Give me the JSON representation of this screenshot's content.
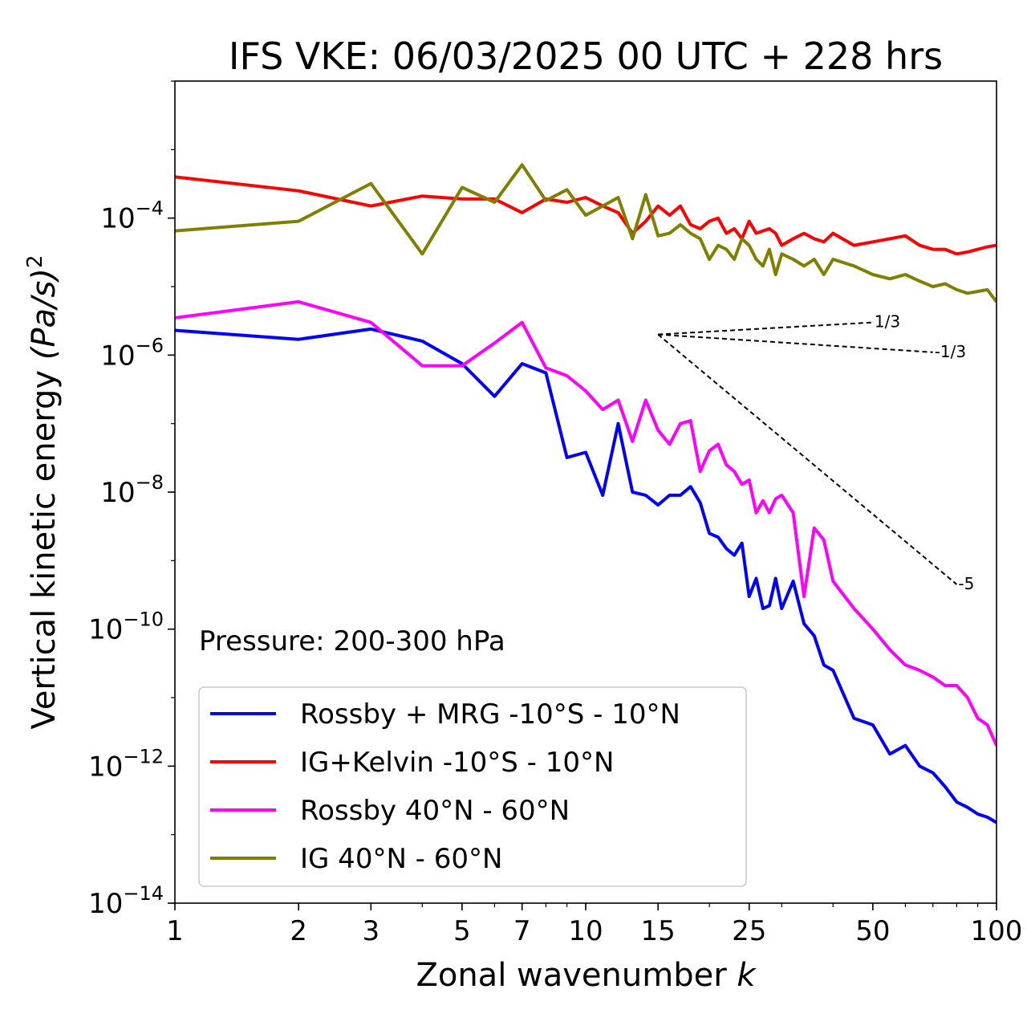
{
  "chart_data": {
    "type": "line",
    "title": "IFS VKE: 06/03/2025 00 UTC + 228 hrs",
    "xlabel": "Zonal wavenumber",
    "xlabel_var": "k",
    "ylabel": "Vertical kinetic energy",
    "ylabel_unit": "(Pa/s)",
    "ylabel_exp": "2",
    "x_scale": "log",
    "y_scale": "log",
    "xlim": [
      1,
      100
    ],
    "ylim": [
      1e-14,
      0.01
    ],
    "x_ticks": [
      1,
      2,
      3,
      5,
      7,
      10,
      15,
      25,
      50,
      100
    ],
    "y_ticks": [
      {
        "value": 0.0001,
        "base": "10",
        "exp": "−4"
      },
      {
        "value": 1e-06,
        "base": "10",
        "exp": "−6"
      },
      {
        "value": 1e-08,
        "base": "10",
        "exp": "−8"
      },
      {
        "value": 1e-10,
        "base": "10",
        "exp": "−10"
      },
      {
        "value": 1e-12,
        "base": "10",
        "exp": "−12"
      },
      {
        "value": 1e-14,
        "base": "10",
        "exp": "−14"
      }
    ],
    "annotation": "Pressure: 200-300 hPa",
    "legend_position": "lower-left",
    "reference_slopes": [
      {
        "label": "1/3",
        "from": [
          15,
          2e-06
        ],
        "to": [
          50,
          3e-06
        ]
      },
      {
        "label": "-1/3",
        "from": [
          15,
          2e-06
        ],
        "to": [
          70,
          1.1e-06
        ]
      },
      {
        "label": "-5",
        "from": [
          15,
          2e-06
        ],
        "to": [
          80,
          4.5e-10
        ]
      }
    ],
    "series": [
      {
        "name": "Rossby + MRG -10°S - 10°N",
        "color": "#0000ff",
        "x": [
          1,
          2,
          3,
          4,
          5,
          6,
          7,
          8,
          9,
          10,
          11,
          12,
          13,
          14,
          15,
          16,
          17,
          18,
          19,
          20,
          21,
          22,
          23,
          24,
          25,
          26,
          27,
          28,
          29,
          30,
          32,
          34,
          36,
          38,
          40,
          45,
          50,
          55,
          60,
          65,
          70,
          75,
          80,
          85,
          90,
          95,
          100
        ],
        "y": [
          2.3e-06,
          1.7e-06,
          2.4e-06,
          1.6e-06,
          7.5e-07,
          2.5e-07,
          7.5e-07,
          5.5e-07,
          3.2e-08,
          3.8e-08,
          9e-09,
          1e-07,
          1e-08,
          9e-09,
          6.5e-09,
          9e-09,
          9e-09,
          1.2e-08,
          7e-09,
          2.5e-09,
          2.2e-09,
          1.5e-09,
          1.2e-09,
          1.8e-09,
          3e-10,
          5.5e-10,
          2e-10,
          2.2e-10,
          5.5e-10,
          2e-10,
          5e-10,
          1.2e-10,
          8e-11,
          3e-11,
          2.5e-11,
          5e-12,
          4e-12,
          1.5e-12,
          2e-12,
          1e-12,
          8e-13,
          5e-13,
          3e-13,
          2.5e-13,
          2e-13,
          1.8e-13,
          1.5e-13
        ]
      },
      {
        "name": "IG+Kelvin -10°S - 10°N",
        "color": "#ff0000",
        "x": [
          1,
          2,
          3,
          4,
          5,
          6,
          7,
          8,
          9,
          10,
          11,
          12,
          13,
          14,
          15,
          16,
          17,
          18,
          19,
          20,
          21,
          22,
          23,
          24,
          25,
          26,
          27,
          28,
          29,
          30,
          32,
          34,
          36,
          38,
          40,
          45,
          50,
          55,
          60,
          65,
          70,
          75,
          80,
          85,
          90,
          95,
          100
        ],
        "y": [
          0.0004,
          0.00025,
          0.00015,
          0.00021,
          0.00019,
          0.00019,
          0.00012,
          0.00019,
          0.00017,
          0.0002,
          0.00015,
          0.00012,
          6e-05,
          9e-05,
          0.00015,
          0.00011,
          0.00015,
          8e-05,
          7e-05,
          9e-05,
          0.0001,
          6e-05,
          7e-05,
          5e-05,
          9e-05,
          6e-05,
          6.5e-05,
          7e-05,
          6e-05,
          4e-05,
          5e-05,
          6e-05,
          5e-05,
          4.5e-05,
          6e-05,
          4e-05,
          4.5e-05,
          5e-05,
          5.5e-05,
          4e-05,
          3.5e-05,
          3.5e-05,
          3e-05,
          3.2e-05,
          3.5e-05,
          3.8e-05,
          4e-05
        ]
      },
      {
        "name": "Rossby 40°N - 60°N",
        "color": "#ff00ff",
        "x": [
          1,
          2,
          3,
          4,
          5,
          6,
          7,
          8,
          9,
          10,
          11,
          12,
          13,
          14,
          15,
          16,
          17,
          18,
          19,
          20,
          21,
          22,
          23,
          24,
          25,
          26,
          27,
          28,
          29,
          30,
          32,
          34,
          36,
          38,
          40,
          45,
          50,
          55,
          60,
          65,
          70,
          75,
          80,
          85,
          90,
          95,
          100
        ],
        "y": [
          3.5e-06,
          6e-06,
          3e-06,
          7e-07,
          7e-07,
          1.5e-06,
          3e-06,
          6.5e-07,
          5e-07,
          3e-07,
          1.6e-07,
          2.2e-07,
          5.5e-08,
          2.2e-07,
          8e-08,
          5e-08,
          1e-07,
          1.1e-07,
          2e-08,
          4e-08,
          5e-08,
          2.5e-08,
          2e-08,
          1.3e-08,
          1.5e-08,
          5e-09,
          7.5e-09,
          5e-09,
          8e-09,
          9e-09,
          5e-09,
          3e-10,
          3e-09,
          2e-09,
          5e-10,
          2e-10,
          1e-10,
          5e-11,
          3e-11,
          2.5e-11,
          2e-11,
          1.5e-11,
          1.5e-11,
          1e-11,
          5e-12,
          4e-12,
          2e-12
        ]
      },
      {
        "name": "IG 40°N - 60°N",
        "color": "#808000",
        "x": [
          1,
          2,
          3,
          4,
          5,
          6,
          7,
          8,
          9,
          10,
          11,
          12,
          13,
          14,
          15,
          16,
          17,
          18,
          19,
          20,
          21,
          22,
          23,
          24,
          25,
          26,
          27,
          28,
          29,
          30,
          32,
          34,
          36,
          38,
          40,
          45,
          50,
          55,
          60,
          65,
          70,
          75,
          80,
          85,
          90,
          95,
          100
        ],
        "y": [
          6.5e-05,
          9e-05,
          0.00032,
          3e-05,
          0.00028,
          0.00017,
          0.0006,
          0.00018,
          0.00026,
          0.00011,
          0.00015,
          0.0002,
          5e-05,
          0.00022,
          5.5e-05,
          6e-05,
          8e-05,
          6e-05,
          5e-05,
          2.5e-05,
          4e-05,
          3.5e-05,
          2.5e-05,
          5e-05,
          4e-05,
          2.5e-05,
          2e-05,
          3.5e-05,
          1.5e-05,
          3e-05,
          2.5e-05,
          2e-05,
          2.5e-05,
          1.5e-05,
          2.5e-05,
          2e-05,
          1.5e-05,
          1.3e-05,
          1.5e-05,
          1.2e-05,
          1e-05,
          1.1e-05,
          9e-06,
          8e-06,
          8.5e-06,
          9e-06,
          6e-06
        ]
      }
    ]
  }
}
